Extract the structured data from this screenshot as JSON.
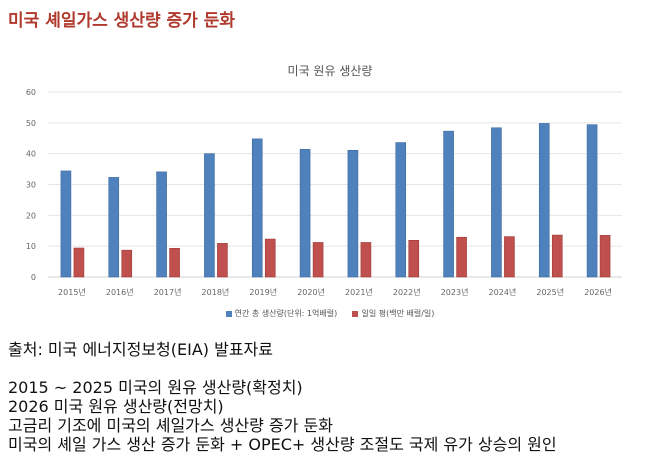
{
  "title": "미국 셰일가스 생산량 증가 둔화",
  "chart_data": {
    "type": "bar",
    "title": "미국 원유 생산량",
    "categories": [
      "2015년",
      "2016년",
      "2017년",
      "2018년",
      "2019년",
      "2020년",
      "2021년",
      "2022년",
      "2023년",
      "2024년",
      "2025년",
      "2026년"
    ],
    "ylim": [
      0,
      60
    ],
    "yticks": [
      0,
      10,
      20,
      30,
      40,
      50,
      60
    ],
    "grid": true,
    "legend": "bottom",
    "series": [
      {
        "name": "연간 총 생산량(단위: 1억배럴)",
        "color": "#4f81bd",
        "values": [
          34.4,
          32.3,
          34.1,
          40.0,
          44.8,
          41.4,
          41.1,
          43.6,
          47.3,
          48.4,
          49.8,
          49.4
        ]
      },
      {
        "name": "일일 평(백만 배럴/일)",
        "color": "#c0504d",
        "values": [
          9.4,
          8.7,
          9.3,
          10.9,
          12.3,
          11.2,
          11.2,
          11.9,
          12.9,
          13.1,
          13.6,
          13.5
        ]
      }
    ]
  },
  "source": "출처: 미국 에너지정보청(EIA) 발표자료",
  "notes": [
    "2015 ~ 2025 미국의 원유 생산량(확정치)",
    "2026 미국 원유 생산량(전망치)",
    "고금리 기조에 미국의 셰일가스 생산량 증가 둔화",
    "미국의 셰일 가스 생산 증가 둔화 + OPEC+ 생산량 조절도 국제 유가 상승의 원인"
  ]
}
